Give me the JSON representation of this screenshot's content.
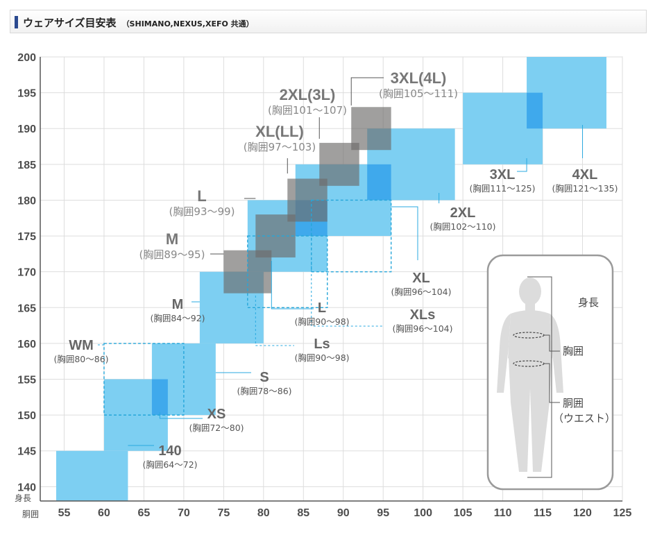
{
  "title": {
    "main": "ウェアサイズ目安表",
    "sub": "（SHIMANO,NEXUS,XEFO 共通）"
  },
  "colors": {
    "blue_box": "#7dcff2",
    "blue_overlap": "#3fa9ec",
    "gray_box": "#6d6b6a",
    "dashed": "#25a6d9",
    "leader": "#29a9e0",
    "grid": "#dddddd",
    "text": "#555555"
  },
  "chart_data": {
    "type": "box-size-chart",
    "x_axis": {
      "unit_label": "胴囲",
      "min": 52,
      "max": 125,
      "ticks": [
        55,
        60,
        65,
        70,
        75,
        80,
        85,
        90,
        95,
        100,
        105,
        110,
        115,
        120,
        125
      ]
    },
    "y_axis": {
      "unit_label": "身長",
      "min": 138,
      "max": 200,
      "ticks": [
        140,
        145,
        150,
        155,
        160,
        165,
        170,
        175,
        180,
        185,
        190,
        195,
        200
      ]
    },
    "grid": true,
    "series": [
      {
        "name": "",
        "style": "blue-box",
        "sizes": [
          {
            "label": "140",
            "chest": "(胸囲64～72)",
            "x": [
              54,
              63
            ],
            "y": [
              138,
              145
            ]
          },
          {
            "label": "XS",
            "chest": "(胸囲72～80)",
            "x": [
              60,
              68
            ],
            "y": [
              145,
              155
            ]
          },
          {
            "label": "S",
            "chest": "(胸囲78～86)",
            "x": [
              66,
              74
            ],
            "y": [
              150,
              160
            ]
          },
          {
            "label": "M",
            "chest": "(胸囲84～92)",
            "x": [
              72,
              80
            ],
            "y": [
              160,
              170
            ]
          },
          {
            "label": "L",
            "chest": "(胸囲90～98)",
            "x": [
              78,
              88
            ],
            "y": [
              170,
              180
            ]
          },
          {
            "label": "XL",
            "chest": "(胸囲96～104)",
            "x": [
              84,
              96
            ],
            "y": [
              175,
              185
            ]
          },
          {
            "label": "2XL",
            "chest": "(胸囲102～110)",
            "x": [
              93,
              104
            ],
            "y": [
              180,
              190
            ]
          },
          {
            "label": "3XL",
            "chest": "(胸囲111～125)",
            "x": [
              105,
              115
            ],
            "y": [
              185,
              195
            ]
          },
          {
            "label": "4XL",
            "chest": "(胸囲121～135)",
            "x": [
              113,
              123
            ],
            "y": [
              190,
              200
            ]
          }
        ]
      },
      {
        "name": "",
        "style": "dashed-box",
        "sizes": [
          {
            "label": "WM",
            "chest": "(胸囲80～86)",
            "x": [
              60,
              70
            ],
            "y": [
              150,
              160
            ]
          },
          {
            "label": "Ls",
            "chest": "(胸囲90～98)",
            "x": [
              78,
              88
            ],
            "y": [
              165,
              175
            ]
          },
          {
            "label": "XLs",
            "chest": "(胸囲96～104)",
            "x": [
              86,
              96
            ],
            "y": [
              170,
              180
            ]
          }
        ]
      },
      {
        "name": "",
        "style": "gray-box",
        "sizes": [
          {
            "label": "M",
            "chest": "(胸囲89～95)",
            "x": [
              75,
              81
            ],
            "y": [
              167,
              173
            ]
          },
          {
            "label": "L",
            "chest": "(胸囲93～99)",
            "x": [
              79,
              84
            ],
            "y": [
              172,
              178
            ]
          },
          {
            "label": "XL(LL)",
            "chest": "(胸囲97～103)",
            "x": [
              83,
              88
            ],
            "y": [
              177,
              183
            ]
          },
          {
            "label": "2XL(3L)",
            "chest": "(胸囲101～107)",
            "x": [
              87,
              92
            ],
            "y": [
              182,
              188
            ]
          },
          {
            "label": "3XL(4L)",
            "chest": "(胸囲105～111)",
            "x": [
              91,
              96
            ],
            "y": [
              187,
              193
            ]
          }
        ]
      }
    ]
  },
  "body_diagram": {
    "height_label": "身長",
    "chest_label": "胸囲",
    "waist_label": "胴囲",
    "waist_note": "（ウエスト）"
  }
}
